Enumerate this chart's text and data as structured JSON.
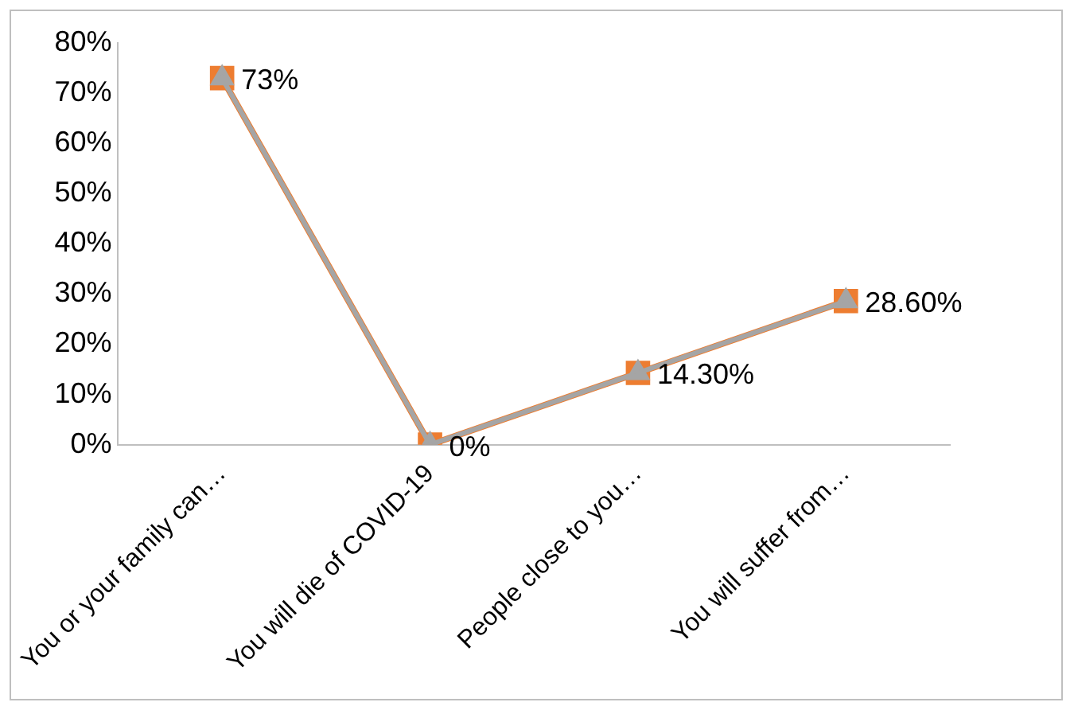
{
  "chart_data": {
    "type": "line",
    "categories": [
      "You or your family can…",
      "You will die of COVID-19",
      "People close to you…",
      "You will suffer from…"
    ],
    "series": [
      {
        "color": "#ed7d31",
        "values": [
          73,
          0,
          14.3,
          28.6
        ],
        "marker": "square",
        "value_labels": [
          "73%",
          "0%",
          "14.30%",
          "28.60%"
        ]
      },
      {
        "color": "#a5a5a5",
        "values": [
          73,
          0,
          14.3,
          28.6
        ],
        "marker": "triangle"
      }
    ],
    "ylim": [
      0,
      80
    ],
    "yticks": [
      {
        "value": 0,
        "label": "0%"
      },
      {
        "value": 10,
        "label": "10%"
      },
      {
        "value": 20,
        "label": "20%"
      },
      {
        "value": 30,
        "label": "30%"
      },
      {
        "value": 40,
        "label": "40%"
      },
      {
        "value": 50,
        "label": "50%"
      },
      {
        "value": 60,
        "label": "60%"
      },
      {
        "value": 70,
        "label": "70%"
      },
      {
        "value": 80,
        "label": "80%"
      }
    ],
    "grid": false,
    "legend": false
  }
}
